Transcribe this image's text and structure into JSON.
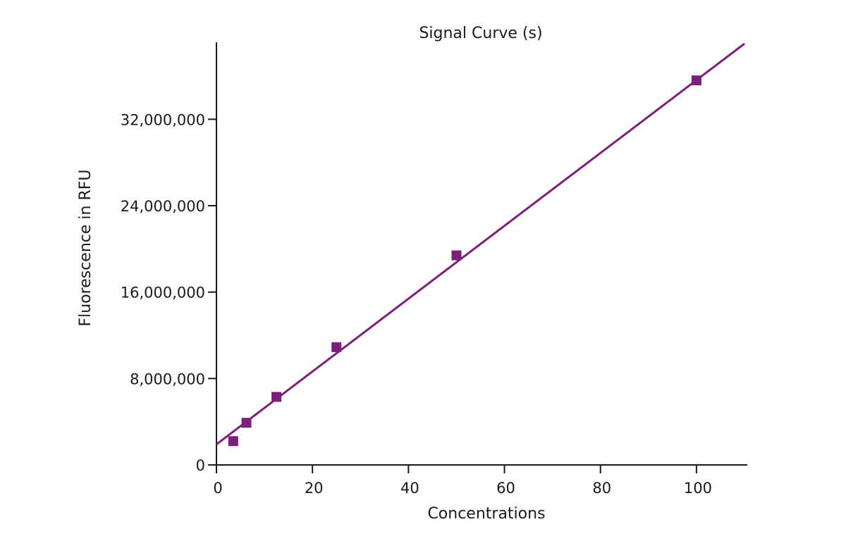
{
  "chart_data": {
    "type": "scatter",
    "title": "Signal Curve (s)",
    "xlabel": "Concentrations",
    "ylabel": "Fluorescence in RFU",
    "xlim": [
      0,
      110
    ],
    "ylim": [
      0,
      39000000
    ],
    "x_ticks": [
      0,
      20,
      40,
      60,
      80,
      100
    ],
    "x_tick_labels": [
      "0",
      "20",
      "40",
      "60",
      "80",
      "100"
    ],
    "y_ticks": [
      0,
      8000000,
      16000000,
      24000000,
      32000000
    ],
    "y_tick_labels": [
      "0",
      "8,000,000",
      "16,000,000",
      "24,000,000",
      "32,000,000"
    ],
    "grid": false,
    "legend": "none",
    "series": [
      {
        "color": "#7b1f7a",
        "marker": "square",
        "points": [
          {
            "x": 3.5,
            "y": 2200000
          },
          {
            "x": 6.25,
            "y": 3900000
          },
          {
            "x": 12.5,
            "y": 6300000
          },
          {
            "x": 25,
            "y": 10900000
          },
          {
            "x": 50,
            "y": 19400000
          },
          {
            "x": 100,
            "y": 35600000
          }
        ]
      }
    ],
    "trendline": {
      "color": "#7b1f7a",
      "type": "linear",
      "x": [
        0,
        110
      ],
      "y": [
        1900000,
        39000000
      ]
    }
  }
}
